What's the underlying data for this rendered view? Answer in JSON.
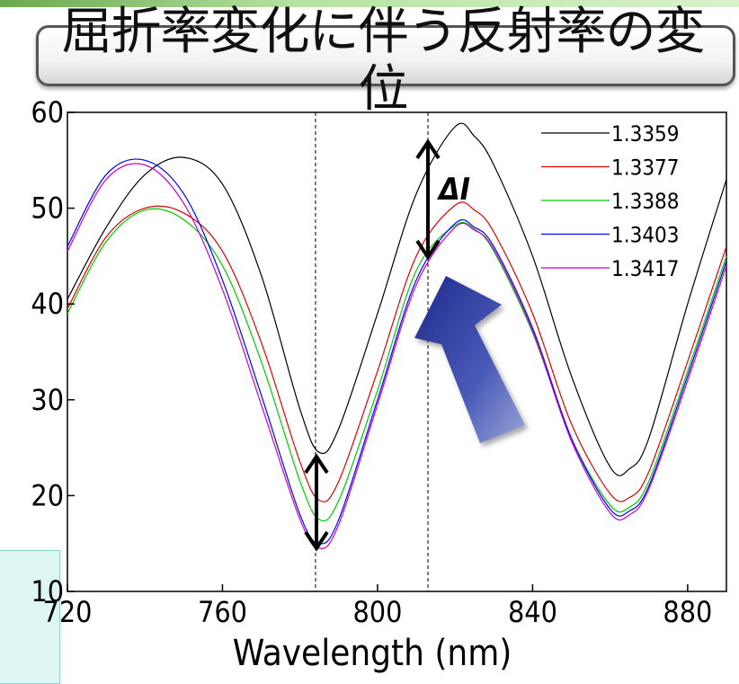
{
  "slide": {
    "title_line1": "屈折率変化に伴う反射率の変",
    "title_line2": "位",
    "accent_color": "#6aa84f",
    "side_box_color": "#dff7f3"
  },
  "chart_data": {
    "type": "line",
    "xlabel": "Wavelength (nm)",
    "ylabel": "",
    "xlim": [
      720,
      890
    ],
    "ylim": [
      10,
      60
    ],
    "xticks": [
      720,
      760,
      800,
      840,
      880
    ],
    "yticks": [
      10,
      20,
      30,
      40,
      50,
      60
    ],
    "grid": false,
    "legend_position": "top-right",
    "x": [
      720,
      730,
      740,
      750,
      760,
      770,
      780,
      785,
      790,
      800,
      810,
      820,
      825,
      830,
      840,
      850,
      860,
      865,
      870,
      880,
      890
    ],
    "series": [
      {
        "name": "1.3359",
        "color": "#000000",
        "values": [
          40.5,
          48,
          53.5,
          55.3,
          52.5,
          43,
          29,
          24.5,
          27,
          39,
          51.5,
          58.5,
          57.5,
          54.5,
          45,
          32.5,
          23,
          22.8,
          26,
          40,
          53
        ]
      },
      {
        "name": "1.3377",
        "color": "#e00000",
        "values": [
          39.5,
          47,
          50,
          49.5,
          45.5,
          36,
          23.5,
          19.5,
          21.5,
          33,
          45,
          50.3,
          49.8,
          47.5,
          39,
          27.5,
          20.2,
          19.8,
          22.5,
          34,
          46
        ]
      },
      {
        "name": "1.3388",
        "color": "#00cc00",
        "values": [
          39,
          46.5,
          49.8,
          48.8,
          44,
          34,
          21.5,
          17.5,
          19.5,
          31,
          43.5,
          48.2,
          47.8,
          45.5,
          37,
          26,
          19,
          18.8,
          21.5,
          33,
          45
        ]
      },
      {
        "name": "1.3403",
        "color": "#0000ff",
        "values": [
          46,
          53.5,
          55,
          51.5,
          42.5,
          30.5,
          18,
          15,
          17.5,
          30,
          42.5,
          48.4,
          48,
          46,
          37.5,
          26,
          18.6,
          18.4,
          21,
          32.5,
          44.5
        ]
      },
      {
        "name": "1.3417",
        "color": "#cc00cc",
        "values": [
          45.5,
          53,
          54.5,
          50.5,
          41.5,
          29.5,
          17.5,
          14.5,
          17,
          29.5,
          42,
          48,
          47.7,
          45.7,
          37.2,
          25.7,
          18.2,
          18,
          20.7,
          32,
          44
        ]
      }
    ],
    "reference_lines_x": [
      784,
      813
    ],
    "annotation_delta": "ΔI"
  }
}
